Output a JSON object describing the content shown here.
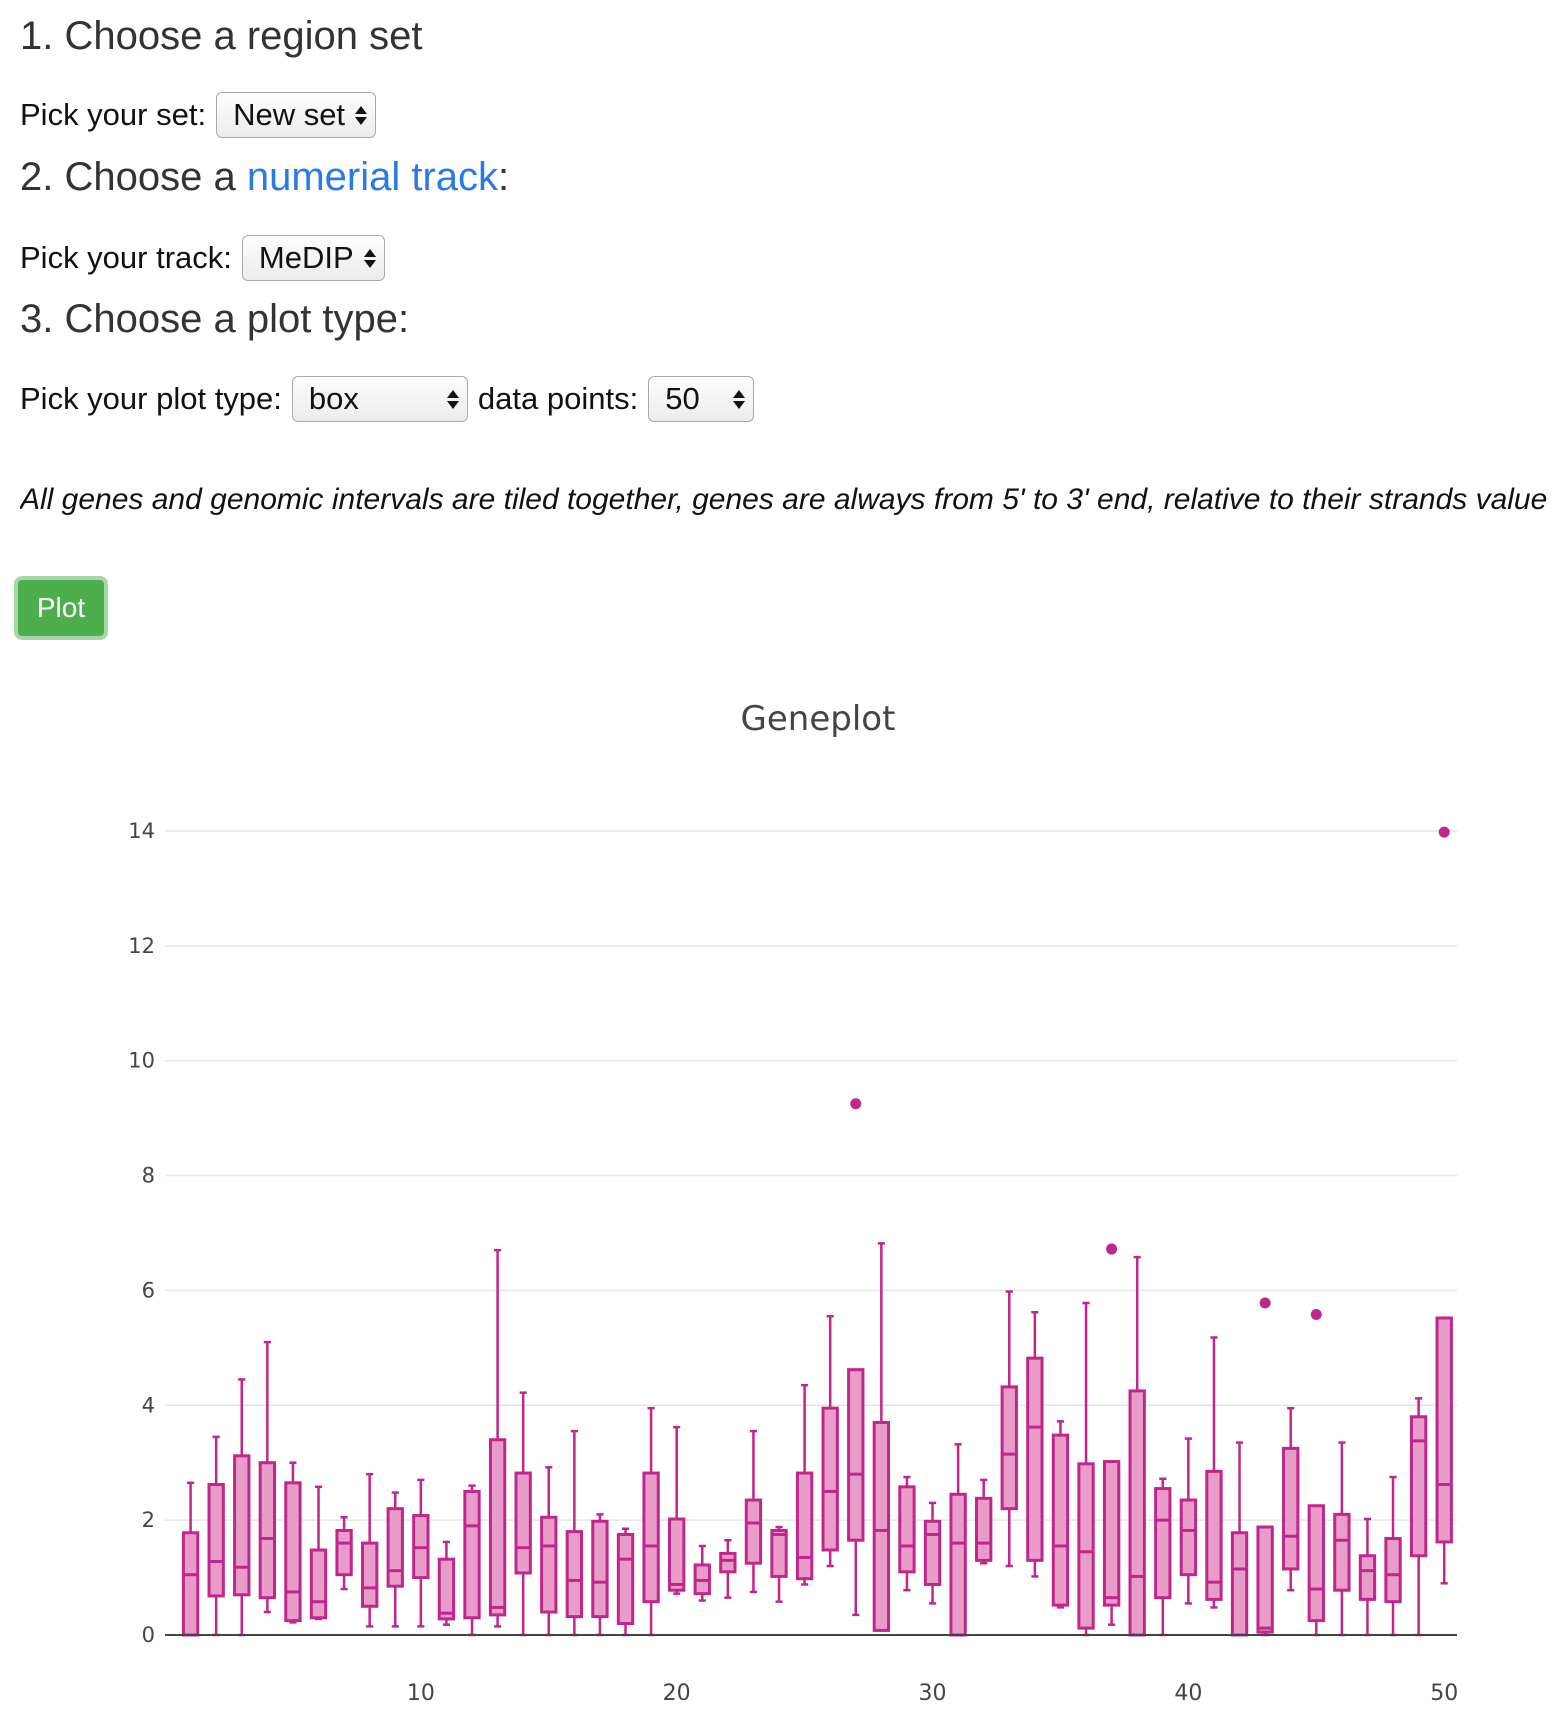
{
  "section1": {
    "heading": "1. Choose a region set",
    "label": "Pick your set:",
    "select_value": "New set"
  },
  "section2": {
    "heading_prefix": "2. Choose a ",
    "heading_link": "numerial track",
    "heading_suffix": ":",
    "label": "Pick your track:",
    "select_value": "MeDIP"
  },
  "section3": {
    "heading": "3. Choose a plot type:",
    "label": "Pick your plot type:",
    "select_value": "box",
    "points_label": "data points:",
    "points_value": "50"
  },
  "note": "All genes and genomic intervals are tiled together, genes are always from 5' to 3' end, relative to their strands value over each data point is plotted.",
  "plot_button": "Plot",
  "chart_data": {
    "type": "box",
    "title": "Geneplot",
    "xlabel": "",
    "ylabel": "",
    "ylim": [
      0,
      14.8
    ],
    "xlim": [
      0,
      50.5
    ],
    "x_ticks": [
      10,
      20,
      30,
      40,
      50
    ],
    "y_ticks": [
      0,
      2,
      4,
      6,
      8,
      10,
      12,
      14
    ],
    "grid": true,
    "legend": "none",
    "color": "#c1278b",
    "fill": "#e89cc9",
    "boxes": [
      {
        "x": 1,
        "min": 0,
        "q1": 0,
        "median": 1.05,
        "q3": 1.78,
        "max": 2.65
      },
      {
        "x": 2,
        "min": 0,
        "q1": 0.68,
        "median": 1.28,
        "q3": 2.62,
        "max": 3.45
      },
      {
        "x": 3,
        "min": 0,
        "q1": 0.7,
        "median": 1.18,
        "q3": 3.12,
        "max": 4.45
      },
      {
        "x": 4,
        "min": 0.4,
        "q1": 0.65,
        "median": 1.68,
        "q3": 3.0,
        "max": 5.1
      },
      {
        "x": 5,
        "min": 0.22,
        "q1": 0.25,
        "median": 0.75,
        "q3": 2.65,
        "max": 3.0
      },
      {
        "x": 6,
        "min": 0.28,
        "q1": 0.3,
        "median": 0.58,
        "q3": 1.48,
        "max": 2.58
      },
      {
        "x": 7,
        "min": 0.8,
        "q1": 1.05,
        "median": 1.6,
        "q3": 1.82,
        "max": 2.05
      },
      {
        "x": 8,
        "min": 0.15,
        "q1": 0.5,
        "median": 0.82,
        "q3": 1.6,
        "max": 2.8
      },
      {
        "x": 9,
        "min": 0.15,
        "q1": 0.85,
        "median": 1.12,
        "q3": 2.2,
        "max": 2.48
      },
      {
        "x": 10,
        "min": 0.15,
        "q1": 1.0,
        "median": 1.52,
        "q3": 2.08,
        "max": 2.7
      },
      {
        "x": 11,
        "min": 0.18,
        "q1": 0.28,
        "median": 0.38,
        "q3": 1.32,
        "max": 1.62
      },
      {
        "x": 12,
        "min": 0,
        "q1": 0.3,
        "median": 1.9,
        "q3": 2.5,
        "max": 2.6
      },
      {
        "x": 13,
        "min": 0.15,
        "q1": 0.35,
        "median": 0.48,
        "q3": 3.4,
        "max": 6.7
      },
      {
        "x": 14,
        "min": 0,
        "q1": 1.08,
        "median": 1.52,
        "q3": 2.82,
        "max": 4.22
      },
      {
        "x": 15,
        "min": 0,
        "q1": 0.4,
        "median": 1.55,
        "q3": 2.05,
        "max": 2.92
      },
      {
        "x": 16,
        "min": 0,
        "q1": 0.32,
        "median": 0.95,
        "q3": 1.8,
        "max": 3.55
      },
      {
        "x": 17,
        "min": 0,
        "q1": 0.32,
        "median": 0.92,
        "q3": 1.98,
        "max": 2.1
      },
      {
        "x": 18,
        "min": 0,
        "q1": 0.2,
        "median": 1.32,
        "q3": 1.75,
        "max": 1.85
      },
      {
        "x": 19,
        "min": 0,
        "q1": 0.58,
        "median": 1.55,
        "q3": 2.82,
        "max": 3.95
      },
      {
        "x": 20,
        "min": 0.72,
        "q1": 0.78,
        "median": 0.88,
        "q3": 2.02,
        "max": 3.62
      },
      {
        "x": 21,
        "min": 0.6,
        "q1": 0.72,
        "median": 0.95,
        "q3": 1.22,
        "max": 1.55
      },
      {
        "x": 22,
        "min": 0.65,
        "q1": 1.1,
        "median": 1.3,
        "q3": 1.42,
        "max": 1.65
      },
      {
        "x": 23,
        "min": 0.75,
        "q1": 1.25,
        "median": 1.95,
        "q3": 2.35,
        "max": 3.55
      },
      {
        "x": 24,
        "min": 0.58,
        "q1": 1.02,
        "median": 1.75,
        "q3": 1.82,
        "max": 1.88
      },
      {
        "x": 25,
        "min": 0.88,
        "q1": 0.98,
        "median": 1.35,
        "q3": 2.82,
        "max": 4.35
      },
      {
        "x": 26,
        "min": 1.2,
        "q1": 1.48,
        "median": 2.5,
        "q3": 3.95,
        "max": 5.55
      },
      {
        "x": 27,
        "min": 0.35,
        "q1": 1.65,
        "median": 2.8,
        "q3": 4.62,
        "max": 4.62,
        "outliers": [
          9.25
        ]
      },
      {
        "x": 28,
        "min": 0.08,
        "q1": 0.08,
        "median": 1.82,
        "q3": 3.7,
        "max": 6.82
      },
      {
        "x": 29,
        "min": 0.78,
        "q1": 1.1,
        "median": 1.55,
        "q3": 2.58,
        "max": 2.75
      },
      {
        "x": 30,
        "min": 0.55,
        "q1": 0.88,
        "median": 1.75,
        "q3": 1.98,
        "max": 2.3
      },
      {
        "x": 31,
        "min": 0,
        "q1": 0,
        "median": 1.6,
        "q3": 2.45,
        "max": 3.32
      },
      {
        "x": 32,
        "min": 1.25,
        "q1": 1.3,
        "median": 1.6,
        "q3": 2.38,
        "max": 2.7
      },
      {
        "x": 33,
        "min": 1.2,
        "q1": 2.2,
        "median": 3.15,
        "q3": 4.32,
        "max": 5.98
      },
      {
        "x": 34,
        "min": 1.02,
        "q1": 1.3,
        "median": 3.62,
        "q3": 4.82,
        "max": 5.62
      },
      {
        "x": 35,
        "min": 0.48,
        "q1": 0.52,
        "median": 1.55,
        "q3": 3.48,
        "max": 3.72
      },
      {
        "x": 36,
        "min": 0,
        "q1": 0.12,
        "median": 1.45,
        "q3": 2.98,
        "max": 5.78
      },
      {
        "x": 37,
        "min": 0.18,
        "q1": 0.52,
        "median": 0.65,
        "q3": 3.02,
        "max": 3.02,
        "outliers": [
          6.72
        ]
      },
      {
        "x": 38,
        "min": 0,
        "q1": 0,
        "median": 1.02,
        "q3": 4.25,
        "max": 6.58
      },
      {
        "x": 39,
        "min": 0,
        "q1": 0.65,
        "median": 2.0,
        "q3": 2.55,
        "max": 2.72
      },
      {
        "x": 40,
        "min": 0.55,
        "q1": 1.05,
        "median": 1.82,
        "q3": 2.35,
        "max": 3.42
      },
      {
        "x": 41,
        "min": 0.48,
        "q1": 0.62,
        "median": 0.92,
        "q3": 2.85,
        "max": 5.18
      },
      {
        "x": 42,
        "min": 0,
        "q1": 0,
        "median": 1.15,
        "q3": 1.78,
        "max": 3.35
      },
      {
        "x": 43,
        "min": 0,
        "q1": 0.05,
        "median": 0.12,
        "q3": 1.88,
        "max": 1.88,
        "outliers": [
          5.78
        ]
      },
      {
        "x": 44,
        "min": 0.78,
        "q1": 1.15,
        "median": 1.72,
        "q3": 3.25,
        "max": 3.95
      },
      {
        "x": 45,
        "min": 0,
        "q1": 0.25,
        "median": 0.8,
        "q3": 2.25,
        "max": 2.25,
        "outliers": [
          5.58
        ]
      },
      {
        "x": 46,
        "min": 0,
        "q1": 0.78,
        "median": 1.65,
        "q3": 2.1,
        "max": 3.35
      },
      {
        "x": 47,
        "min": 0,
        "q1": 0.62,
        "median": 1.12,
        "q3": 1.38,
        "max": 2.02
      },
      {
        "x": 48,
        "min": 0,
        "q1": 0.58,
        "median": 1.05,
        "q3": 1.68,
        "max": 2.75
      },
      {
        "x": 49,
        "min": 0,
        "q1": 1.38,
        "median": 3.38,
        "q3": 3.8,
        "max": 4.12
      },
      {
        "x": 50,
        "min": 0.9,
        "q1": 1.62,
        "median": 2.62,
        "q3": 5.52,
        "max": 5.52,
        "outliers": [
          13.98
        ]
      }
    ]
  }
}
